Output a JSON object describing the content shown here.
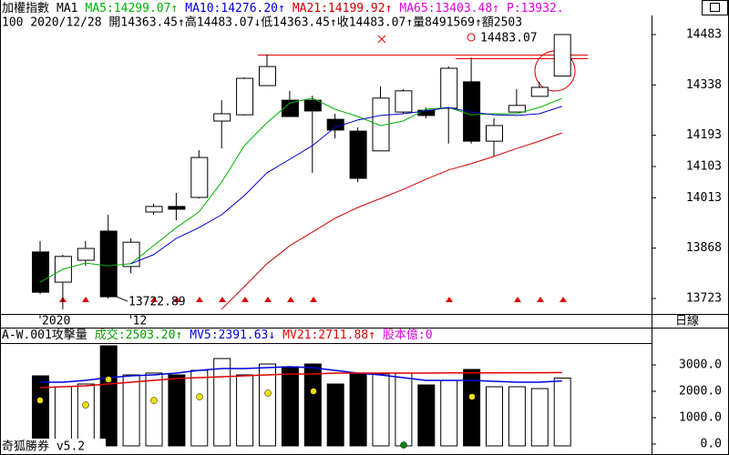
{
  "chart_data": [
    {
      "type": "candlestick",
      "title": "加權指數",
      "indicator_label": "MA1",
      "info": "100 2020/12/28 開14363.45↑高14483.07↓低14363.45↑收14483.07↑量8491569↑額2503",
      "categories": [
        "2020",
        null,
        null,
        null,
        "12",
        null,
        null,
        null,
        null,
        null,
        null,
        null,
        null,
        null,
        null,
        null,
        null,
        null,
        null,
        null,
        null,
        null,
        null,
        null
      ],
      "open": [
        13857,
        13770,
        13833,
        13917,
        13815,
        13972,
        13988,
        14014,
        14234,
        14252,
        14336,
        14294,
        14294,
        14239,
        14205,
        14148,
        14260,
        14265,
        14271,
        14347,
        14176,
        14260,
        14305,
        14363.45
      ],
      "high": [
        13888,
        13849,
        13888,
        13964,
        13896,
        13996,
        14027,
        14150,
        14294,
        14360,
        14425,
        14321,
        14307,
        14255,
        14216,
        14334,
        14326,
        14273,
        14391,
        14417,
        14242,
        14326,
        14347,
        14483.07
      ],
      "low": [
        13736,
        13692,
        13817,
        13722.89,
        13796,
        13964,
        13948,
        14011,
        14155,
        14250,
        14336,
        14247,
        14085,
        14184,
        14058,
        14148,
        14255,
        14242,
        14169,
        14169,
        14132,
        14260,
        14305,
        14363.45
      ],
      "close": [
        13741,
        13844,
        13867,
        13728,
        13885,
        13988,
        13980,
        14129,
        14255,
        14357,
        14391,
        14247,
        14263,
        14208,
        14069,
        14300,
        14321,
        14250,
        14386,
        14176,
        14221,
        14279,
        14331,
        14483.07
      ],
      "series": [
        {
          "name": "MA5:14299.07↑",
          "color": "#00b000",
          "values": [
            13770,
            13807,
            13825,
            13817,
            13823,
            13875,
            13927,
            13972,
            14058,
            14163,
            14229,
            14286,
            14300,
            14268,
            14247,
            14221,
            14234,
            14268,
            14273,
            14252,
            14255,
            14255,
            14273,
            14299.07
          ]
        },
        {
          "name": "MA10:14276.20↑",
          "color": "#0000c8",
          "values": [
            null,
            null,
            null,
            null,
            13823,
            13849,
            13896,
            13927,
            13964,
            14019,
            14085,
            14124,
            14163,
            14216,
            14237,
            14250,
            14255,
            14263,
            14273,
            14260,
            14252,
            14250,
            14255,
            14276.2
          ]
        },
        {
          "name": "MA21:14199.92↑",
          "color": "#d00000",
          "values": [
            null,
            null,
            null,
            null,
            null,
            null,
            null,
            null,
            13692,
            13757,
            13823,
            13875,
            13914,
            13954,
            13985,
            14011,
            14037,
            14066,
            14093,
            14111,
            14132,
            14155,
            14176,
            14199.92
          ]
        }
      ],
      "legend_extra": [
        {
          "text": "MA65:13403.48↑",
          "color": "#e000e0"
        },
        {
          "text": "P:13932.",
          "color": "#e000e0"
        }
      ],
      "annotations": [
        {
          "label": "13722.89",
          "value": 13722.89
        },
        {
          "label": "14483.07",
          "value": 14483.07
        }
      ],
      "ylim": [
        13680,
        14505
      ],
      "yticks": [
        14483,
        14338,
        14193,
        14103,
        14013,
        13868,
        13723
      ],
      "period_label": "日線"
    },
    {
      "type": "bar",
      "title": "A-W.001攻擊量",
      "series": [
        {
          "name": "成交:2503.20↑",
          "type": "bar",
          "color": "#00a000",
          "values": [
            2586,
            2172,
            2276,
            3724,
            2621,
            2690,
            2621,
            2793,
            3241,
            2621,
            3034,
            2931,
            3034,
            2276,
            2690,
            2655,
            2690,
            2241,
            2414,
            2828,
            2172,
            2172,
            2103,
            2503.2
          ]
        },
        {
          "name": "MV5:2391.63↓",
          "type": "line",
          "color": "#0000e0",
          "values": [
            2345,
            2345,
            2414,
            2517,
            2586,
            2621,
            2690,
            2793,
            2862,
            2862,
            2897,
            2931,
            2897,
            2793,
            2690,
            2621,
            2517,
            2414,
            2414,
            2414,
            2379,
            2345,
            2345,
            2391.63
          ]
        },
        {
          "name": "MV21:2711.88↑",
          "type": "line",
          "color": "#e00000",
          "values": [
            2138,
            2172,
            2207,
            2276,
            2345,
            2414,
            2483,
            2517,
            2552,
            2586,
            2621,
            2655,
            2655,
            2690,
            2690,
            2690,
            2690,
            2690,
            2695,
            2700,
            2700,
            2705,
            2705,
            2711.88
          ]
        }
      ],
      "legend_extra": [
        {
          "text": "股本億:0",
          "color": "#e000e0"
        }
      ],
      "ylim": [
        -70,
        3790
      ],
      "yticks": [
        {
          "value": 3000,
          "label": "3000.0"
        },
        {
          "value": 2000,
          "label": "2000.0"
        },
        {
          "value": 1000,
          "label": "1000.0"
        },
        {
          "value": 0,
          "label": "0.0"
        }
      ]
    }
  ],
  "footer": "奇狐勝券 v5.2"
}
